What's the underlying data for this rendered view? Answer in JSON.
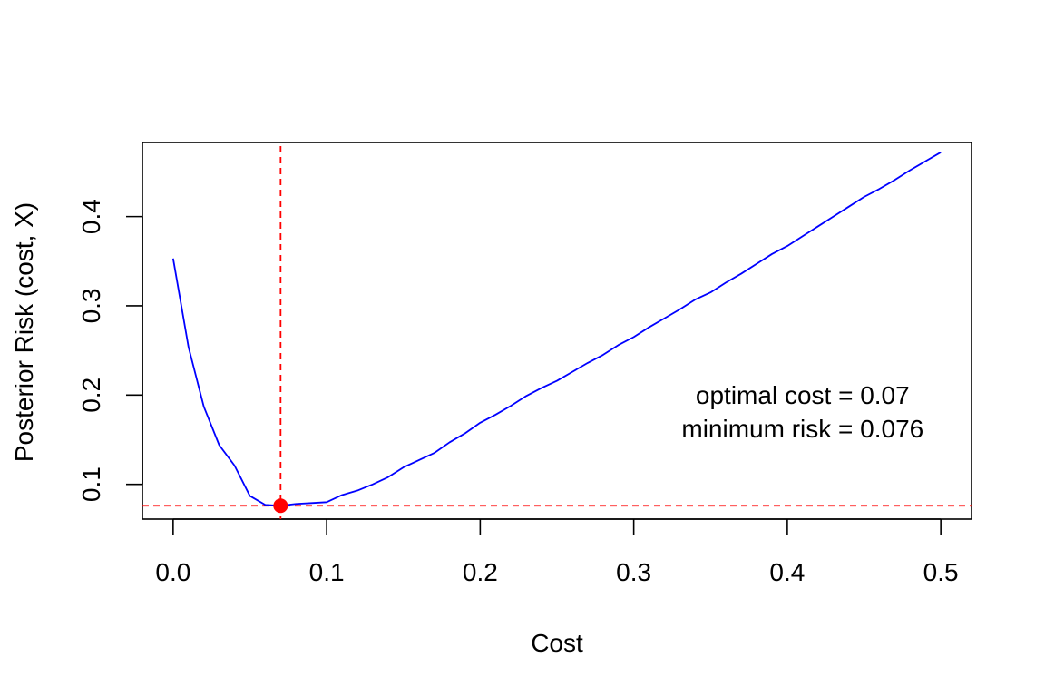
{
  "chart_data": {
    "type": "line",
    "title": "",
    "xlabel": "Cost",
    "ylabel": "Posterior Risk (cost, X)",
    "xlim": [
      -0.02,
      0.52
    ],
    "ylim": [
      0.061,
      0.483
    ],
    "xticks": [
      0.0,
      0.1,
      0.2,
      0.3,
      0.4,
      0.5
    ],
    "xtick_labels": [
      "0.0",
      "0.1",
      "0.2",
      "0.3",
      "0.4",
      "0.5"
    ],
    "yticks": [
      0.1,
      0.2,
      0.3,
      0.4
    ],
    "ytick_labels": [
      "0.1",
      "0.2",
      "0.3",
      "0.4"
    ],
    "grid": false,
    "series": [
      {
        "color": "#0000ff",
        "x": [
          0.0,
          0.01,
          0.02,
          0.03,
          0.04,
          0.05,
          0.06,
          0.07,
          0.08,
          0.09,
          0.1,
          0.11,
          0.12,
          0.13,
          0.14,
          0.15,
          0.16,
          0.17,
          0.18,
          0.19,
          0.2,
          0.21,
          0.22,
          0.23,
          0.24,
          0.25,
          0.26,
          0.27,
          0.28,
          0.29,
          0.3,
          0.31,
          0.32,
          0.33,
          0.34,
          0.35,
          0.36,
          0.37,
          0.38,
          0.39,
          0.4,
          0.41,
          0.42,
          0.43,
          0.44,
          0.45,
          0.46,
          0.47,
          0.48,
          0.49,
          0.5
        ],
        "y": [
          0.353,
          0.254,
          0.187,
          0.144,
          0.121,
          0.087,
          0.077,
          0.076,
          0.078,
          0.079,
          0.08,
          0.088,
          0.093,
          0.1,
          0.108,
          0.119,
          0.127,
          0.135,
          0.147,
          0.157,
          0.169,
          0.178,
          0.188,
          0.199,
          0.208,
          0.216,
          0.226,
          0.236,
          0.245,
          0.256,
          0.265,
          0.276,
          0.286,
          0.296,
          0.307,
          0.315,
          0.326,
          0.336,
          0.347,
          0.358,
          0.367,
          0.378,
          0.389,
          0.4,
          0.411,
          0.422,
          0.431,
          0.441,
          0.452,
          0.462,
          0.472
        ]
      }
    ],
    "optimum": {
      "x": 0.07,
      "y": 0.076,
      "color": "#ff0000"
    },
    "reference_lines": {
      "color": "#ff0000",
      "style": "dashed",
      "vertical_x": 0.07,
      "horizontal_y": 0.076
    },
    "annotation": {
      "lines": [
        "optimal cost = 0.07",
        "minimum risk = 0.076"
      ],
      "x": 0.41,
      "y": 0.19
    }
  }
}
